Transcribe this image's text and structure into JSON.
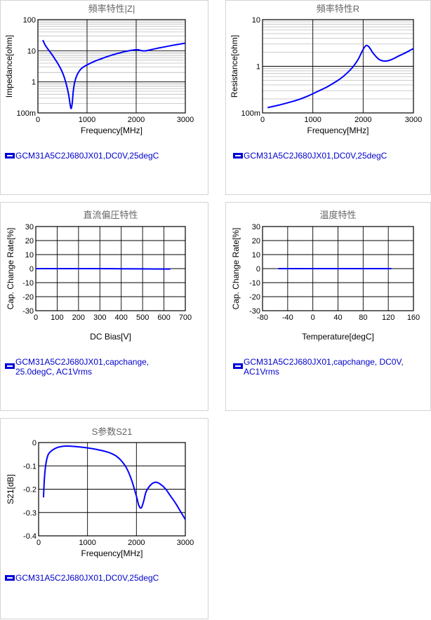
{
  "chart_data": [
    {
      "id": "c0",
      "type": "line",
      "title": "頻率特性|Z|",
      "xlabel": "Frequency[MHz]",
      "ylabel": "Impedance[ohm]",
      "xlim": [
        0,
        3000
      ],
      "ylim": [
        0.1,
        100
      ],
      "yscale": "log",
      "grid": true,
      "xticks": [
        0,
        1000,
        2000,
        3000
      ],
      "xtick_labels": [
        "0",
        "1000",
        "2000",
        "3000"
      ],
      "yticks": [
        0.1,
        1,
        10,
        100
      ],
      "ytick_labels": [
        "100m",
        "1",
        "10",
        "100"
      ],
      "line_color": "#0000ff",
      "legend": "GCM31A5C2J680JX01,DC0V,25degC",
      "series": [
        {
          "x": [
            100,
            150,
            200,
            250,
            300,
            350,
            400,
            450,
            500,
            550,
            600,
            630,
            660,
            680,
            700,
            720,
            750,
            800,
            850,
            900,
            1000,
            1100,
            1200,
            1300,
            1400,
            1500,
            1600,
            1700,
            1800,
            1900,
            2000,
            2050,
            2100,
            2150,
            2200,
            2300,
            2400,
            2500,
            2600,
            2700,
            2800,
            2900,
            3000
          ],
          "y": [
            22,
            15,
            11.5,
            9,
            7,
            5.3,
            4,
            2.9,
            2.0,
            1.2,
            0.6,
            0.35,
            0.17,
            0.14,
            0.22,
            0.5,
            1.0,
            1.7,
            2.3,
            2.8,
            3.5,
            4.2,
            4.9,
            5.6,
            6.4,
            7.2,
            8.0,
            8.8,
            9.6,
            10.3,
            10.8,
            10.7,
            10.1,
            9.9,
            10.0,
            10.8,
            11.7,
            12.6,
            13.5,
            14.5,
            15.5,
            16.5,
            17.5
          ]
        }
      ]
    },
    {
      "id": "c1",
      "type": "line",
      "title": "頻率特性R",
      "xlabel": "Frequency[MHz]",
      "ylabel": "Resistance[ohm]",
      "xlim": [
        0,
        3000
      ],
      "ylim": [
        0.1,
        10
      ],
      "yscale": "log",
      "grid": true,
      "xticks": [
        0,
        1000,
        2000,
        3000
      ],
      "xtick_labels": [
        "0",
        "1000",
        "2000",
        "3000"
      ],
      "yticks": [
        0.1,
        1,
        10
      ],
      "ytick_labels": [
        "100m",
        "1",
        "10"
      ],
      "line_color": "#0000ff",
      "legend": "GCM31A5C2J680JX01,DC0V,25degC",
      "series": [
        {
          "x": [
            100,
            300,
            500,
            700,
            900,
            1100,
            1300,
            1500,
            1600,
            1700,
            1800,
            1900,
            1950,
            2000,
            2050,
            2100,
            2150,
            2200,
            2300,
            2400,
            2500,
            2600,
            2700,
            2800,
            2900,
            3000
          ],
          "y": [
            0.13,
            0.145,
            0.165,
            0.19,
            0.23,
            0.29,
            0.37,
            0.5,
            0.6,
            0.75,
            0.98,
            1.4,
            1.8,
            2.3,
            2.75,
            2.7,
            2.3,
            1.9,
            1.45,
            1.3,
            1.32,
            1.45,
            1.65,
            1.85,
            2.1,
            2.4
          ]
        }
      ]
    },
    {
      "id": "c2",
      "type": "line",
      "title": "直流偏圧特性",
      "xlabel": "DC Bias[V]",
      "ylabel": "Cap. Change Rate[%]",
      "xlim": [
        0,
        700
      ],
      "ylim": [
        -30,
        30
      ],
      "yscale": "linear",
      "grid": true,
      "xticks": [
        0,
        100,
        200,
        300,
        400,
        500,
        600,
        700
      ],
      "xtick_labels": [
        "0",
        "100",
        "200",
        "300",
        "400",
        "500",
        "600",
        "700"
      ],
      "yticks": [
        -30,
        -20,
        -10,
        0,
        10,
        20,
        30
      ],
      "ytick_labels": [
        "-30",
        "-20",
        "-10",
        "0",
        "10",
        "20",
        "30"
      ],
      "line_color": "#0000ff",
      "legend": "GCM31A5C2J680JX01,capchange,\n25.0degC, AC1Vrms",
      "series": [
        {
          "x": [
            0,
            100,
            200,
            300,
            400,
            500,
            630
          ],
          "y": [
            0,
            0,
            0,
            0,
            -0.1,
            -0.2,
            -0.3
          ]
        }
      ]
    },
    {
      "id": "c3",
      "type": "line",
      "title": "温度特性",
      "xlabel": "Temperature[degC]",
      "ylabel": "Cap. Change Rate[%]",
      "xlim": [
        -80,
        160
      ],
      "ylim": [
        -30,
        30
      ],
      "yscale": "linear",
      "grid": true,
      "xticks": [
        -80,
        -40,
        0,
        40,
        80,
        120,
        160
      ],
      "xtick_labels": [
        "-80",
        "-40",
        "0",
        "40",
        "80",
        "120",
        "160"
      ],
      "yticks": [
        -30,
        -20,
        -10,
        0,
        10,
        20,
        30
      ],
      "ytick_labels": [
        "-30",
        "-20",
        "-10",
        "0",
        "10",
        "20",
        "30"
      ],
      "line_color": "#0000ff",
      "legend": "GCM31A5C2J680JX01,capchange, DC0V,\nAC1Vrms",
      "series": [
        {
          "x": [
            -55,
            -20,
            25,
            60,
            125
          ],
          "y": [
            0,
            0,
            0,
            0,
            0
          ]
        }
      ]
    },
    {
      "id": "c4",
      "type": "line",
      "title": "S参数S21",
      "xlabel": "Frequency[MHz]",
      "ylabel": "S21[dB]",
      "xlim": [
        0,
        3000
      ],
      "ylim": [
        -0.4,
        0
      ],
      "yscale": "linear",
      "grid": true,
      "xticks": [
        0,
        1000,
        2000,
        3000
      ],
      "xtick_labels": [
        "0",
        "1000",
        "2000",
        "3000"
      ],
      "yticks": [
        -0.4,
        -0.3,
        -0.2,
        -0.1,
        0
      ],
      "ytick_labels": [
        "-0.4",
        "-0.3",
        "-0.2",
        "-0.1",
        "0"
      ],
      "line_color": "#0000ff",
      "legend": "GCM31A5C2J680JX01,DC0V,25degC",
      "series": [
        {
          "x": [
            100,
            120,
            150,
            200,
            300,
            400,
            500,
            600,
            800,
            1000,
            1200,
            1400,
            1500,
            1600,
            1700,
            1800,
            1900,
            2000,
            2050,
            2100,
            2150,
            2200,
            2300,
            2400,
            2500,
            2600,
            2700,
            2800,
            2900,
            3000
          ],
          "y": [
            -0.235,
            -0.15,
            -0.09,
            -0.05,
            -0.03,
            -0.02,
            -0.016,
            -0.015,
            -0.018,
            -0.023,
            -0.03,
            -0.04,
            -0.048,
            -0.06,
            -0.08,
            -0.11,
            -0.16,
            -0.23,
            -0.27,
            -0.28,
            -0.25,
            -0.21,
            -0.18,
            -0.17,
            -0.18,
            -0.2,
            -0.23,
            -0.26,
            -0.295,
            -0.33
          ]
        }
      ]
    }
  ]
}
